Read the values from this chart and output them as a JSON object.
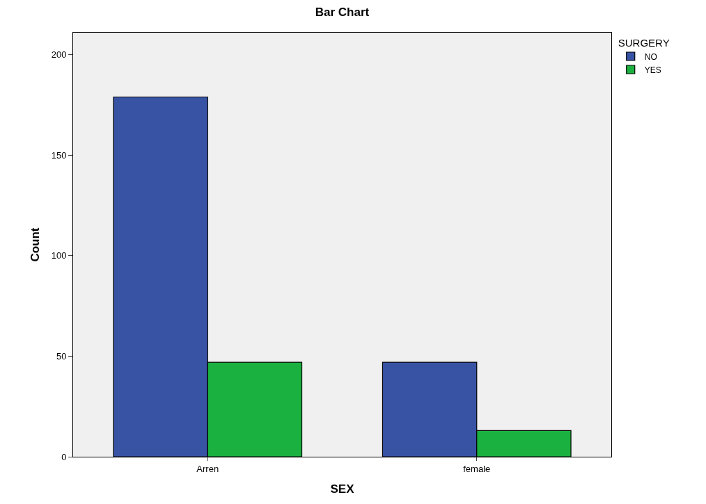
{
  "chart_data": {
    "type": "bar",
    "title": "Bar Chart",
    "xlabel": "SEX",
    "ylabel": "Count",
    "legend_title": "SURGERY",
    "categories": [
      "Arren",
      "female"
    ],
    "series": [
      {
        "name": "NO",
        "color": "#3953a4",
        "values": [
          179,
          47
        ]
      },
      {
        "name": "YES",
        "color": "#1bb141",
        "values": [
          47,
          13
        ]
      }
    ],
    "ylim": [
      0,
      211
    ],
    "yticks": [
      0,
      50,
      100,
      150,
      200
    ],
    "grid": false,
    "legend": "top right"
  }
}
